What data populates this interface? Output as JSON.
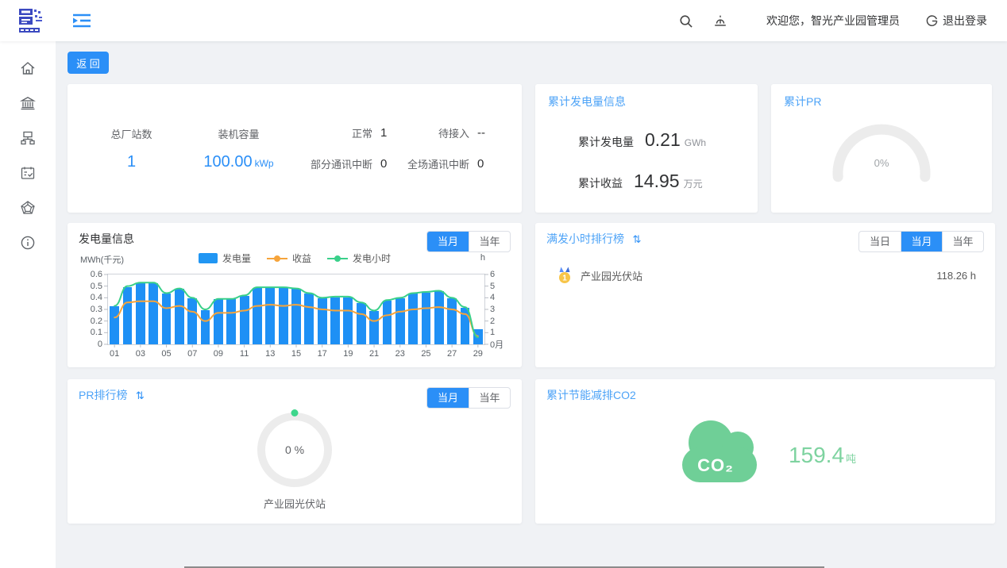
{
  "header": {
    "welcome": "欢迎您，智光产业园管理员",
    "logout_label": "退出登录"
  },
  "toolbar": {
    "back_label": "返 回"
  },
  "icons": {
    "sort": "⇅"
  },
  "overview": {
    "station_count_label": "总厂站数",
    "station_count_value": "1",
    "capacity_label": "装机容量",
    "capacity_value": "100.00",
    "capacity_unit": "kWp",
    "statuses": [
      {
        "label": "正常",
        "value": "1"
      },
      {
        "label": "待接入",
        "value": "--"
      },
      {
        "label": "部分通讯中断",
        "value": "0"
      },
      {
        "label": "全场通讯中断",
        "value": "0"
      }
    ]
  },
  "cumulative_generation": {
    "title": "累计发电量信息",
    "rows": [
      {
        "label": "累计发电量",
        "value": "0.21",
        "unit": "GWh"
      },
      {
        "label": "累计收益",
        "value": "14.95",
        "unit": "万元"
      }
    ]
  },
  "cumulative_pr": {
    "title": "累计PR",
    "value": "0%"
  },
  "generation": {
    "title": "发电量信息",
    "tabs": [
      "当月",
      "当年"
    ],
    "active_tab": "当月",
    "left_axis_label": "MWh(千元)",
    "right_axis_label": "h",
    "legend": [
      "发电量",
      "收益",
      "发电小时"
    ]
  },
  "chart_data": {
    "type": "bar",
    "title": "发电量信息",
    "x": [
      "01",
      "02",
      "03",
      "04",
      "05",
      "06",
      "07",
      "08",
      "09",
      "10",
      "11",
      "12",
      "13",
      "14",
      "15",
      "16",
      "17",
      "18",
      "19",
      "20",
      "21",
      "22",
      "23",
      "24",
      "25",
      "26",
      "27",
      "28",
      "29"
    ],
    "x_label_every": 2,
    "series": [
      {
        "name": "发电量",
        "type": "bar",
        "axis": "left",
        "color": "#1e90f5",
        "values": [
          0.33,
          0.5,
          0.53,
          0.53,
          0.44,
          0.48,
          0.4,
          0.3,
          0.39,
          0.39,
          0.42,
          0.49,
          0.49,
          0.49,
          0.48,
          0.44,
          0.4,
          0.41,
          0.41,
          0.36,
          0.29,
          0.38,
          0.4,
          0.44,
          0.45,
          0.46,
          0.4,
          0.32,
          0.13
        ]
      },
      {
        "name": "收益",
        "type": "line",
        "axis": "left",
        "color": "#f6a43b",
        "values": [
          0.23,
          0.36,
          0.37,
          0.37,
          0.31,
          0.33,
          0.28,
          0.2,
          0.27,
          0.27,
          0.29,
          0.33,
          0.34,
          0.33,
          0.34,
          0.32,
          0.3,
          0.29,
          0.29,
          0.26,
          0.2,
          0.25,
          0.28,
          0.3,
          0.31,
          0.32,
          0.3,
          0.26,
          0.07
        ]
      },
      {
        "name": "发电小时",
        "type": "line",
        "axis": "right",
        "color": "#3ad08a",
        "values": [
          3.3,
          5.0,
          5.3,
          5.3,
          4.4,
          4.8,
          4.0,
          3.0,
          3.9,
          3.9,
          4.2,
          4.9,
          4.9,
          4.9,
          4.8,
          4.4,
          4.0,
          4.1,
          4.1,
          3.6,
          2.9,
          3.8,
          4.0,
          4.4,
          4.5,
          4.6,
          4.0,
          3.2,
          0.6
        ]
      }
    ],
    "left_axis": {
      "label": "MWh(千元)",
      "min": 0,
      "max": 0.6,
      "tick_step": 0.1
    },
    "right_axis": {
      "label": "h",
      "min": 0,
      "max": 6,
      "tick_step": 1,
      "last_tick_label": "0月"
    },
    "legend_position": "top",
    "grid": false
  },
  "hours_ranking": {
    "title": "满发小时排行榜",
    "tabs": [
      "当日",
      "当月",
      "当年"
    ],
    "active_tab": "当月",
    "items": [
      {
        "rank": "1",
        "name": "产业园光伏站",
        "value": "118.26 h"
      }
    ]
  },
  "pr_ranking": {
    "title": "PR排行榜",
    "tabs": [
      "当月",
      "当年"
    ],
    "active_tab": "当月",
    "items": [
      {
        "name": "产业园光伏站",
        "value": "0 %"
      }
    ]
  },
  "co2": {
    "title": "累计节能减排CO2",
    "cloud_text": "CO₂",
    "value": "159.4",
    "unit": "吨"
  },
  "colors": {
    "accent": "#2b8ff7",
    "title_blue": "#4da3f7",
    "bar_blue": "#1e90f5",
    "revenue_orange": "#f6a43b",
    "hours_green": "#3ad08a",
    "co2_green": "#6fcf97",
    "gauge_gray": "#ececec",
    "medal_gold": "#f7c549"
  }
}
